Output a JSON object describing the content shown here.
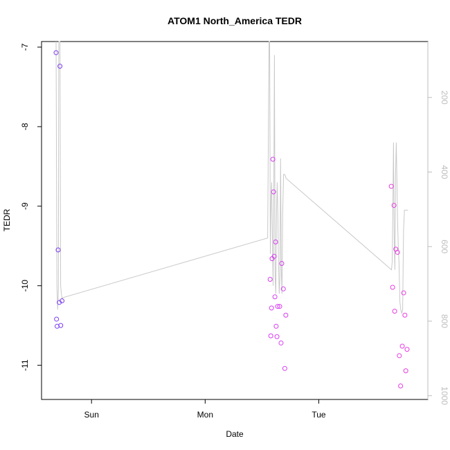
{
  "chart_data": {
    "type": "scatter",
    "title": "ATOM1 North_America TEDR",
    "xlabel": "Date",
    "ylabel": "TEDR",
    "x_tick_labels": [
      "Sun",
      "Mon",
      "Tue"
    ],
    "x_tick_values": [
      1.0,
      2.0,
      3.0
    ],
    "xlim": [
      0.56,
      3.96
    ],
    "ylim": [
      -11.43,
      -6.93
    ],
    "y_ticks": [
      -7,
      -8,
      -9,
      -10,
      -11
    ],
    "y_tick_labels": [
      "-7",
      "-8",
      "-9",
      "-10",
      "-11"
    ],
    "y2_ticks": [
      200,
      400,
      600,
      800,
      1000
    ],
    "y2_tick_labels": [
      "200",
      "400",
      "600",
      "800",
      "1000"
    ],
    "y2lim": [
      1010,
      50
    ],
    "grid": false,
    "line_color": "#c8c8c8",
    "right_axis_color": "#bdbdbd",
    "points": [
      {
        "x": 0.688,
        "y": -7.07,
        "color": "#7c3cf0"
      },
      {
        "x": 0.692,
        "y": -10.42,
        "color": "#7c3cf0"
      },
      {
        "x": 0.697,
        "y": -10.51,
        "color": "#7c3cf0"
      },
      {
        "x": 0.706,
        "y": -9.55,
        "color": "#7c3cf0"
      },
      {
        "x": 0.716,
        "y": -10.21,
        "color": "#7c3cf0"
      },
      {
        "x": 0.722,
        "y": -7.24,
        "color": "#7c3cf0"
      },
      {
        "x": 0.729,
        "y": -10.5,
        "color": "#7c3cf0"
      },
      {
        "x": 0.74,
        "y": -10.19,
        "color": "#7c3cf0"
      },
      {
        "x": 2.572,
        "y": -9.92,
        "color": "#d63cf0"
      },
      {
        "x": 2.578,
        "y": -10.63,
        "color": "#d63cf0"
      },
      {
        "x": 2.584,
        "y": -10.28,
        "color": "#d63cf0"
      },
      {
        "x": 2.589,
        "y": -9.66,
        "color": "#d63cf0"
      },
      {
        "x": 2.596,
        "y": -8.41,
        "color": "#d63cf0"
      },
      {
        "x": 2.602,
        "y": -8.82,
        "color": "#d63cf0"
      },
      {
        "x": 2.608,
        "y": -9.63,
        "color": "#d63cf0"
      },
      {
        "x": 2.614,
        "y": -10.14,
        "color": "#d63cf0"
      },
      {
        "x": 2.62,
        "y": -9.45,
        "color": "#d63cf0"
      },
      {
        "x": 2.625,
        "y": -10.51,
        "color": "#d63cf0"
      },
      {
        "x": 2.632,
        "y": -10.64,
        "color": "#d63cf0"
      },
      {
        "x": 2.638,
        "y": -10.26,
        "color": "#d63cf0"
      },
      {
        "x": 2.656,
        "y": -10.26,
        "color": "#d63cf0"
      },
      {
        "x": 2.668,
        "y": -10.72,
        "color": "#d63cf0"
      },
      {
        "x": 2.674,
        "y": -9.72,
        "color": "#d63cf0"
      },
      {
        "x": 2.688,
        "y": -10.04,
        "color": "#d63cf0"
      },
      {
        "x": 2.701,
        "y": -11.04,
        "color": "#d63cf0"
      },
      {
        "x": 2.71,
        "y": -10.37,
        "color": "#d63cf0"
      },
      {
        "x": 3.638,
        "y": -8.75,
        "color": "#e83ce0"
      },
      {
        "x": 3.65,
        "y": -10.02,
        "color": "#e83ce0"
      },
      {
        "x": 3.662,
        "y": -8.99,
        "color": "#e83ce0"
      },
      {
        "x": 3.668,
        "y": -10.32,
        "color": "#e83ce0"
      },
      {
        "x": 3.678,
        "y": -9.54,
        "color": "#e83ce0"
      },
      {
        "x": 3.693,
        "y": -9.58,
        "color": "#e83ce0"
      },
      {
        "x": 3.709,
        "y": -10.88,
        "color": "#e83ce0"
      },
      {
        "x": 3.72,
        "y": -11.26,
        "color": "#e83ce0"
      },
      {
        "x": 3.735,
        "y": -10.76,
        "color": "#e83ce0"
      },
      {
        "x": 3.747,
        "y": -10.09,
        "color": "#e83ce0"
      },
      {
        "x": 3.758,
        "y": -10.37,
        "color": "#e83ce0"
      },
      {
        "x": 3.766,
        "y": -11.07,
        "color": "#e83ce0"
      },
      {
        "x": 3.777,
        "y": -10.8,
        "color": "#e83ce0"
      }
    ],
    "line_series": {
      "x": [
        0.688,
        0.695,
        0.702,
        0.708,
        0.712,
        0.716,
        0.722,
        0.728,
        0.734,
        0.742,
        0.748,
        2.55,
        2.562,
        2.568,
        2.574,
        2.58,
        2.586,
        2.592,
        2.598,
        2.604,
        2.61,
        2.616,
        2.622,
        2.628,
        2.634,
        2.64,
        2.646,
        2.652,
        2.658,
        2.664,
        2.67,
        2.676,
        2.682,
        2.69,
        2.698,
        2.706,
        2.712,
        3.64,
        3.646,
        3.652,
        3.658,
        3.664,
        3.67,
        3.676,
        3.682,
        3.688,
        3.694,
        3.7,
        3.706,
        3.714,
        3.722,
        3.73,
        3.738,
        3.746,
        3.754,
        3.762,
        3.77,
        3.778,
        3.786
      ],
      "y": [
        -6.9,
        -10.0,
        -10.3,
        -10.05,
        -6.9,
        -6.9,
        -6.9,
        -10.0,
        -10.1,
        -10.17,
        -10.15,
        -9.4,
        -6.9,
        -6.9,
        -9.6,
        -8.9,
        -8.7,
        -9.4,
        -10.0,
        -8.9,
        -7.1,
        -9.9,
        -10.1,
        -9.1,
        -8.7,
        -9.1,
        -9.7,
        -10.1,
        -9.9,
        -8.4,
        -9.8,
        -10.1,
        -9.1,
        -8.6,
        -8.6,
        -8.62,
        -8.65,
        -9.8,
        -9.7,
        -9.0,
        -8.2,
        -9.4,
        -9.8,
        -8.6,
        -8.2,
        -8.7,
        -9.2,
        -9.5,
        -9.7,
        -10.2,
        -10.3,
        -10.35,
        -10.3,
        -9.3,
        -9.05,
        -9.05,
        -9.05,
        -9.05,
        -9.05
      ]
    }
  }
}
